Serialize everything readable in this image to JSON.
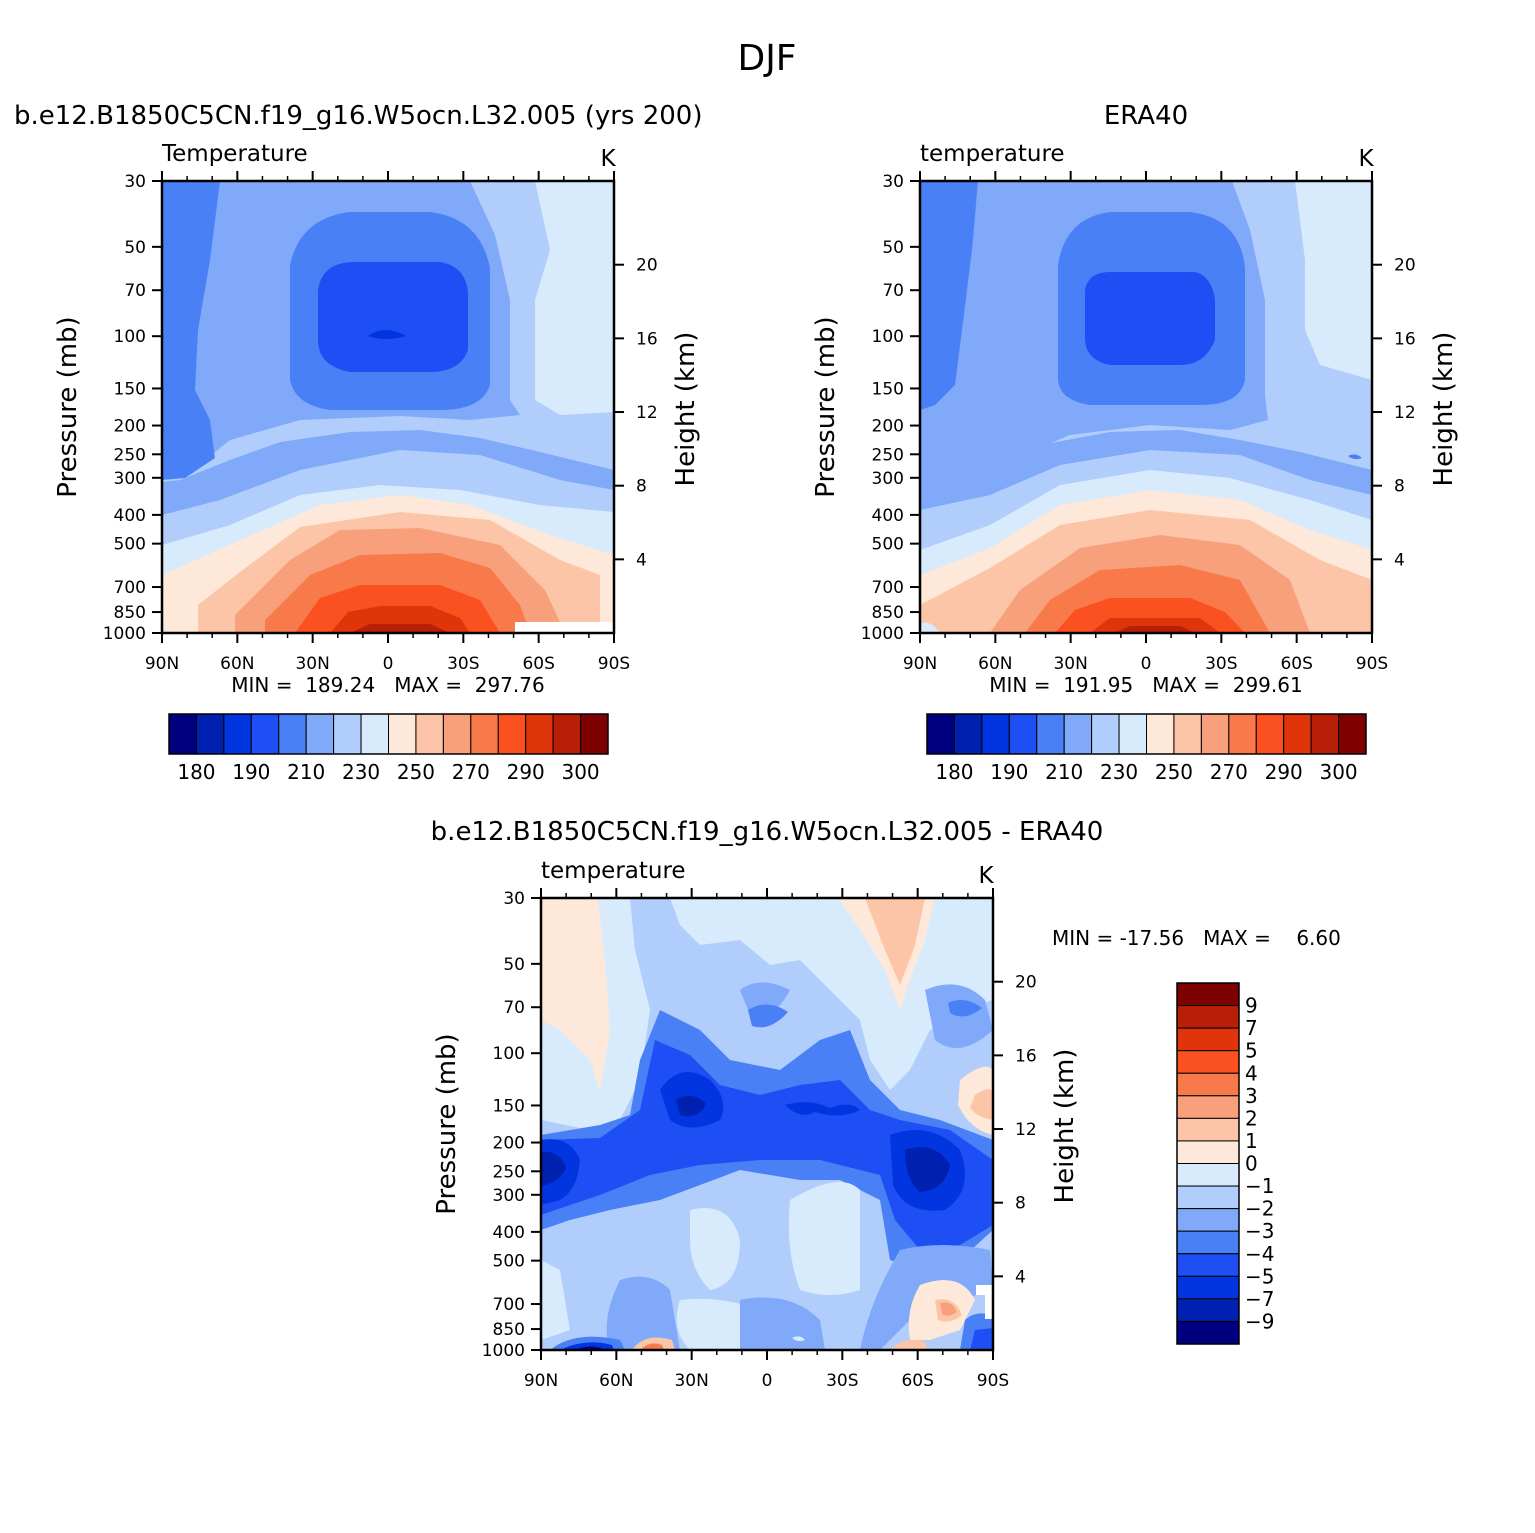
{
  "page_title": "DJF",
  "chart_data": [
    {
      "type": "heatmap",
      "title": "b.e12.B1850C5CN.f19_g16.W5ocn.L32.005 (yrs 200)",
      "left_subtitle": "Temperature",
      "right_subtitle": "K",
      "ylabel": "Pressure (mb)",
      "ylabel_right": "Height (km)",
      "x_ticks": [
        "90N",
        "60N",
        "30N",
        "0",
        "30S",
        "60S",
        "90S"
      ],
      "y_ticks": [
        "30",
        "50",
        "70",
        "100",
        "150",
        "200",
        "250",
        "300",
        "400",
        "500",
        "700",
        "850",
        "1000"
      ],
      "y_ticks_right": [
        "20",
        "16",
        "12",
        "8",
        "4"
      ],
      "stats": "MIN =  189.24   MAX =  297.76",
      "colorbar": {
        "orientation": "horizontal",
        "labels": [
          "180",
          "190",
          "210",
          "230",
          "250",
          "270",
          "290",
          "300"
        ],
        "colors": [
          "#00007f",
          "#0020b0",
          "#0035e0",
          "#1e4ff5",
          "#4a80f5",
          "#80a9f9",
          "#b0cdfc",
          "#d8ebfd",
          "#fde8d9",
          "#fcc5a8",
          "#f7a07b",
          "#f87a4a",
          "#fb5020",
          "#e0340a",
          "#b81f07",
          "#7f0000"
        ]
      },
      "levels": {
        "layers": [
          {
            "color": "#b0cdfc",
            "level": "230-240"
          },
          {
            "color": "#80a9f9",
            "level": "220-230"
          },
          {
            "color": "#4a80f5",
            "level": "210-220"
          },
          {
            "color": "#1e4ff5",
            "level": "200-210"
          },
          {
            "color": "#d8ebfd",
            "level": "240-250"
          },
          {
            "color": "#fde8d9",
            "level": "250-260"
          },
          {
            "color": "#fcc5a8",
            "level": "260-270"
          },
          {
            "color": "#f7a07b",
            "level": "270-280"
          },
          {
            "color": "#f87a4a",
            "level": "280-285"
          },
          {
            "color": "#fb5020",
            "level": "285-290"
          },
          {
            "color": "#e0340a",
            "level": "290-295"
          },
          {
            "color": "#b81f07",
            "level": "295-300"
          }
        ]
      }
    },
    {
      "type": "heatmap",
      "title": "ERA40",
      "left_subtitle": "temperature",
      "right_subtitle": "K",
      "ylabel": "Pressure (mb)",
      "ylabel_right": "Height (km)",
      "x_ticks": [
        "90N",
        "60N",
        "30N",
        "0",
        "30S",
        "60S",
        "90S"
      ],
      "y_ticks": [
        "30",
        "50",
        "70",
        "100",
        "150",
        "200",
        "250",
        "300",
        "400",
        "500",
        "700",
        "850",
        "1000"
      ],
      "y_ticks_right": [
        "20",
        "16",
        "12",
        "8",
        "4"
      ],
      "stats": "MIN =  191.95   MAX =  299.61",
      "colorbar": {
        "orientation": "horizontal",
        "labels": [
          "180",
          "190",
          "210",
          "230",
          "250",
          "270",
          "290",
          "300"
        ],
        "colors": [
          "#00007f",
          "#0020b0",
          "#0035e0",
          "#1e4ff5",
          "#4a80f5",
          "#80a9f9",
          "#b0cdfc",
          "#d8ebfd",
          "#fde8d9",
          "#fcc5a8",
          "#f7a07b",
          "#f87a4a",
          "#fb5020",
          "#e0340a",
          "#b81f07",
          "#7f0000"
        ]
      }
    },
    {
      "type": "heatmap",
      "title": "b.e12.B1850C5CN.f19_g16.W5ocn.L32.005 - ERA40",
      "left_subtitle": "temperature",
      "right_subtitle": "K",
      "ylabel": "Pressure (mb)",
      "ylabel_right": "Height (km)",
      "x_ticks": [
        "90N",
        "60N",
        "30N",
        "0",
        "30S",
        "60S",
        "90S"
      ],
      "y_ticks": [
        "30",
        "50",
        "70",
        "100",
        "150",
        "200",
        "250",
        "300",
        "400",
        "500",
        "700",
        "850",
        "1000"
      ],
      "y_ticks_right": [
        "20",
        "16",
        "12",
        "8",
        "4"
      ],
      "stats": "MIN = -17.56   MAX =    6.60",
      "colorbar": {
        "orientation": "vertical",
        "labels": [
          "9",
          "7",
          "5",
          "4",
          "3",
          "2",
          "1",
          "0",
          "-1",
          "-2",
          "-3",
          "-4",
          "-5",
          "-7",
          "-9"
        ],
        "colors": [
          "#7f0000",
          "#b81f07",
          "#e0340a",
          "#fb5020",
          "#f87a4a",
          "#f7a07b",
          "#fcc5a8",
          "#fde8d9",
          "#d8ebfd",
          "#b0cdfc",
          "#80a9f9",
          "#4a80f5",
          "#1e4ff5",
          "#0035e0",
          "#0020b0",
          "#00007f"
        ]
      }
    }
  ]
}
